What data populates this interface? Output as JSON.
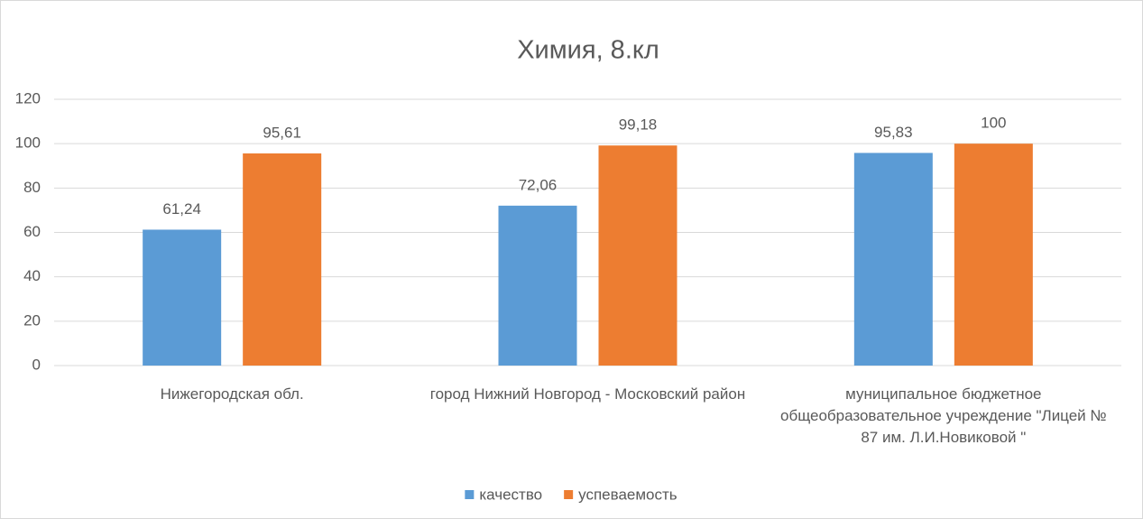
{
  "chart_data": {
    "type": "bar",
    "title": "Химия, 8.кл",
    "categories": [
      "Нижегородская обл.",
      "город Нижний Новгород - Московский район",
      "муниципальное бюджетное общеобразовательное учреждение \"Лицей № 87 им. Л.И.Новиковой  \""
    ],
    "series": [
      {
        "name": "качество",
        "color": "#5b9bd5",
        "values": [
          61.24,
          72.06,
          95.83
        ],
        "value_labels": [
          "61,24",
          "72,06",
          "95,83"
        ]
      },
      {
        "name": "успеваемость",
        "color": "#ed7d31",
        "values": [
          95.61,
          99.18,
          100
        ],
        "value_labels": [
          "95,61",
          "99,18",
          "100"
        ]
      }
    ],
    "ylim": [
      0,
      120
    ],
    "yticks": [
      0,
      20,
      40,
      60,
      80,
      100,
      120
    ],
    "grid": true,
    "legend": "bottom"
  }
}
